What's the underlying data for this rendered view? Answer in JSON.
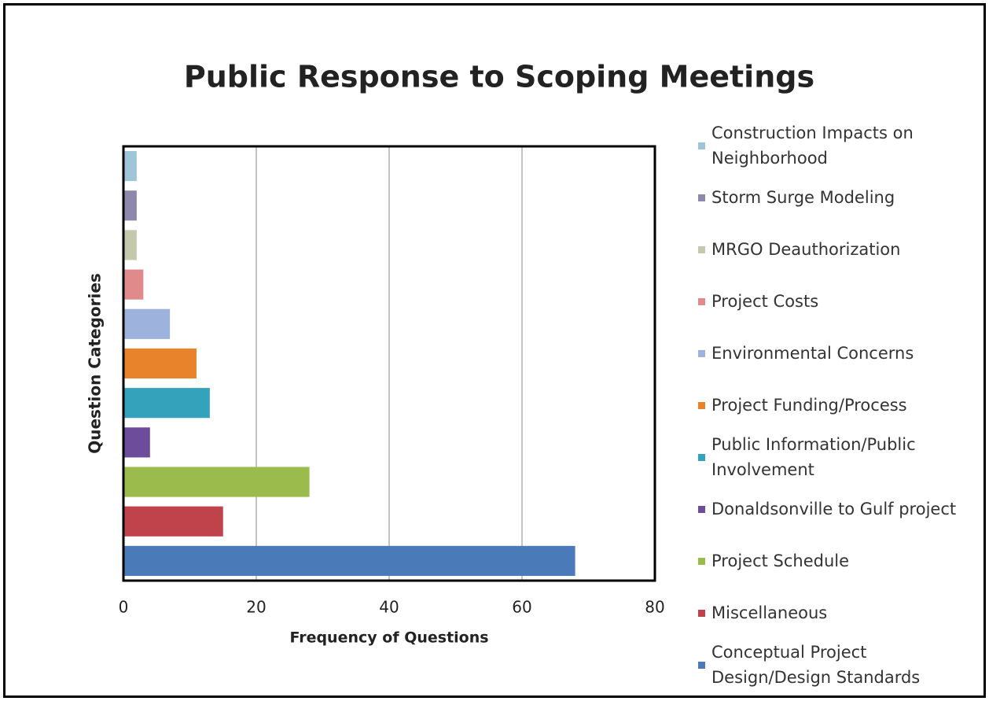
{
  "chart_data": {
    "type": "bar",
    "orientation": "horizontal",
    "title": "Public Response to Scoping Meetings",
    "x_label": "Frequency of Questions",
    "y_label": "Question Categories",
    "categories": [
      "Construction Impacts on Neighborhood",
      "Storm Surge Modeling",
      "MRGO Deauthorization",
      "Project Costs",
      "Environmental Concerns",
      "Project Funding/Process",
      "Public Information/Public Involvement",
      "Donaldsonville to Gulf project",
      "Project Schedule",
      "Miscellaneous",
      "Conceptual Project Design/Design Standards"
    ],
    "values": [
      2,
      2,
      2,
      3,
      7,
      11,
      13,
      4,
      28,
      15,
      68
    ],
    "colors": [
      "#9fc6d8",
      "#8f88ad",
      "#c5c9ab",
      "#e08a8c",
      "#9db2dd",
      "#e8832c",
      "#34a2ba",
      "#6c4c9b",
      "#9bbb4c",
      "#c0434b",
      "#4a7bb8"
    ],
    "xlim": [
      0,
      80
    ],
    "xticks": [
      0,
      20,
      40,
      60,
      80
    ],
    "grid": true
  }
}
